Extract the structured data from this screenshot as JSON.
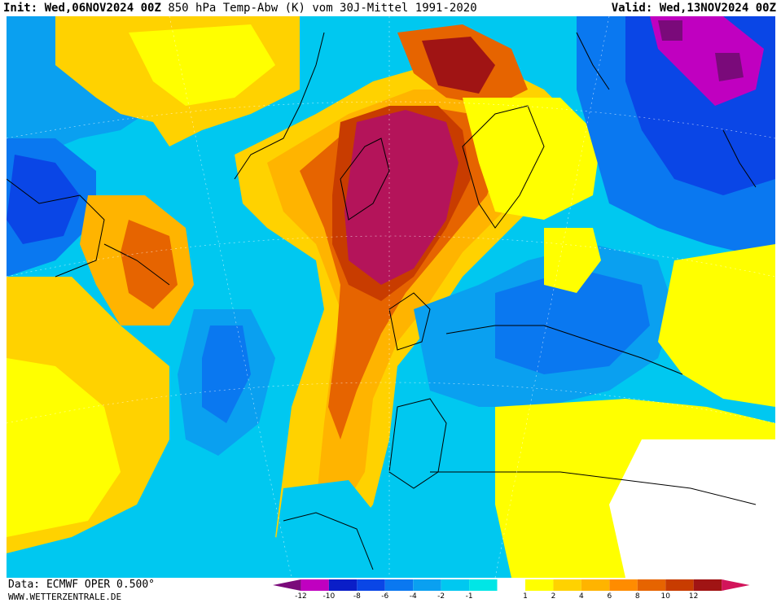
{
  "header": {
    "init_label": "Init:",
    "init_value": "Wed,06NOV2024 00Z",
    "title": "850 hPa Temp-Abw (K) vom 30J-Mittel 1991-2020",
    "valid_label": "Valid:",
    "valid_value": "Wed,13NOV2024 00Z"
  },
  "footer": {
    "data_source": "Data: ECMWF OPER 0.500°",
    "website": "WWW.WETTERZENTRALE.DE"
  },
  "legend": {
    "colors": [
      "#7a0a7a",
      "#c000c0",
      "#0a1ec8",
      "#0a46e6",
      "#0a78f0",
      "#0aa0f0",
      "#00c8f0",
      "#00e6e6",
      "#ffffff",
      "#ffff00",
      "#ffd200",
      "#ffb400",
      "#ff8c00",
      "#e66400",
      "#c83c00",
      "#a01414",
      "#d2145a"
    ],
    "tick_labels": [
      "-12",
      "-10",
      "-8",
      "-6",
      "-4",
      "-2",
      "-1",
      "1",
      "2",
      "4",
      "6",
      "8",
      "10",
      "12"
    ]
  },
  "map": {
    "colors": {
      "strong_cold": "#0a46e6",
      "cold": "#0a78f0",
      "cool": "#0aa0f0",
      "mild_cool": "#00c8f0",
      "near_zero": "#ffffff",
      "mild_warm": "#ffff00",
      "warm": "#ffd200",
      "warmer": "#ffb400",
      "hot": "#ff8c00",
      "very_hot": "#e66400",
      "extreme": "#c83c00",
      "peak": "#b4145a",
      "magenta": "#c000c0",
      "purple": "#7a0a7a"
    }
  }
}
